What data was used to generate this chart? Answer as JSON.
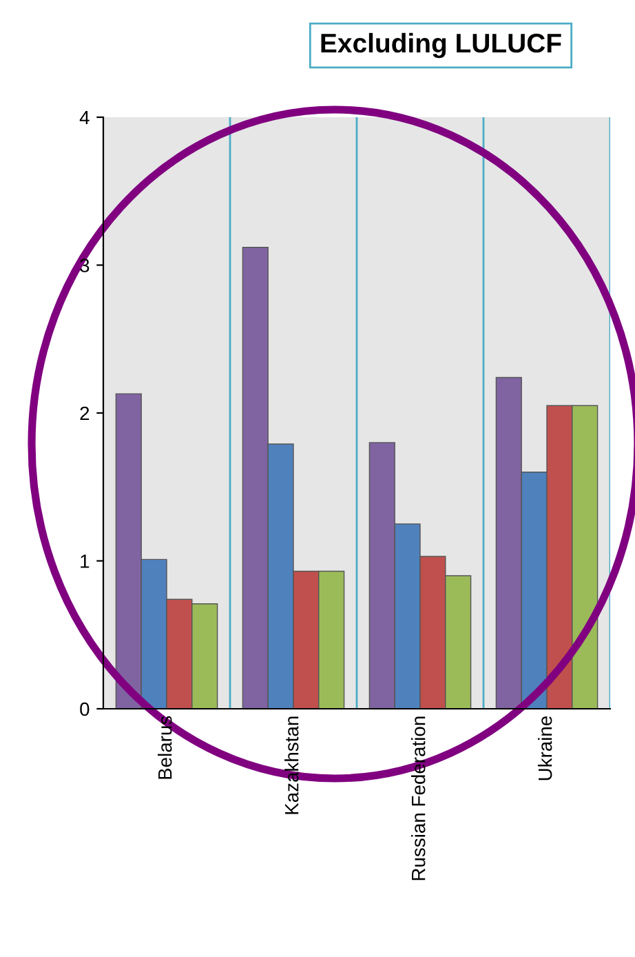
{
  "chart_data": {
    "type": "bar",
    "title": "Excluding LULUCF",
    "categories": [
      "Belarus",
      "Kazakhstan",
      "Russian Federation",
      "Ukraine"
    ],
    "series": [
      {
        "color": "#8064a2",
        "values": [
          2.13,
          3.12,
          1.8,
          2.24
        ]
      },
      {
        "color": "#4f81bd",
        "values": [
          1.01,
          1.79,
          1.25,
          1.6
        ]
      },
      {
        "color": "#c0504d",
        "values": [
          0.74,
          0.93,
          1.03,
          2.05
        ]
      },
      {
        "color": "#9bbb59",
        "values": [
          0.71,
          0.93,
          0.9,
          2.05
        ]
      }
    ],
    "ylim": [
      0,
      4
    ],
    "yticks": [
      0,
      1,
      2,
      3,
      4
    ],
    "grid": "x"
  }
}
